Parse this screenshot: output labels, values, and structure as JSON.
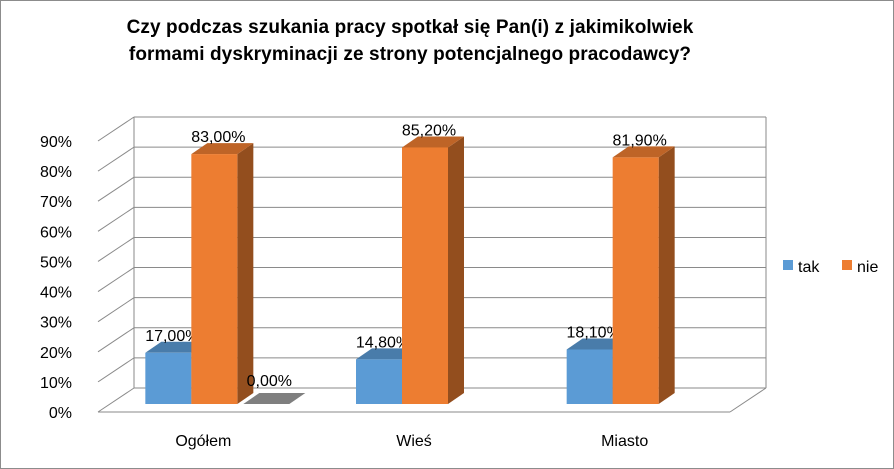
{
  "chart_data": {
    "type": "bar",
    "title": "Czy podczas szukania pracy spotkał się Pan(i) z jakimikolwiek formami dyskryminacji ze strony potencjalnego pracodawcy?",
    "title_lines": [
      "Czy podczas  szukania pracy spotkał się Pan(i) z jakimikolwiek",
      "formami dyskryminacji ze strony potencjalnego pracodawcy?"
    ],
    "categories": [
      "Ogółem",
      "Wieś",
      "Miasto"
    ],
    "series": [
      {
        "name": "tak",
        "values": [
          17.0,
          14.8,
          18.1
        ],
        "labels": [
          "17,00%",
          "14,80%",
          "18,10%"
        ],
        "color": "#5b9bd5"
      },
      {
        "name": "nie",
        "values": [
          83.0,
          85.2,
          81.9
        ],
        "labels": [
          "83,00%",
          "85,20%",
          "81,90%"
        ],
        "color": "#ed7d31"
      }
    ],
    "extra_labels": [
      {
        "category": "Ogółem",
        "text": "0,00%"
      }
    ],
    "ylim": [
      0,
      90
    ],
    "yticks": [
      "0%",
      "10%",
      "20%",
      "30%",
      "40%",
      "50%",
      "60%",
      "70%",
      "80%",
      "90%"
    ],
    "grid": true,
    "legend": "right",
    "style": "3d-column"
  }
}
